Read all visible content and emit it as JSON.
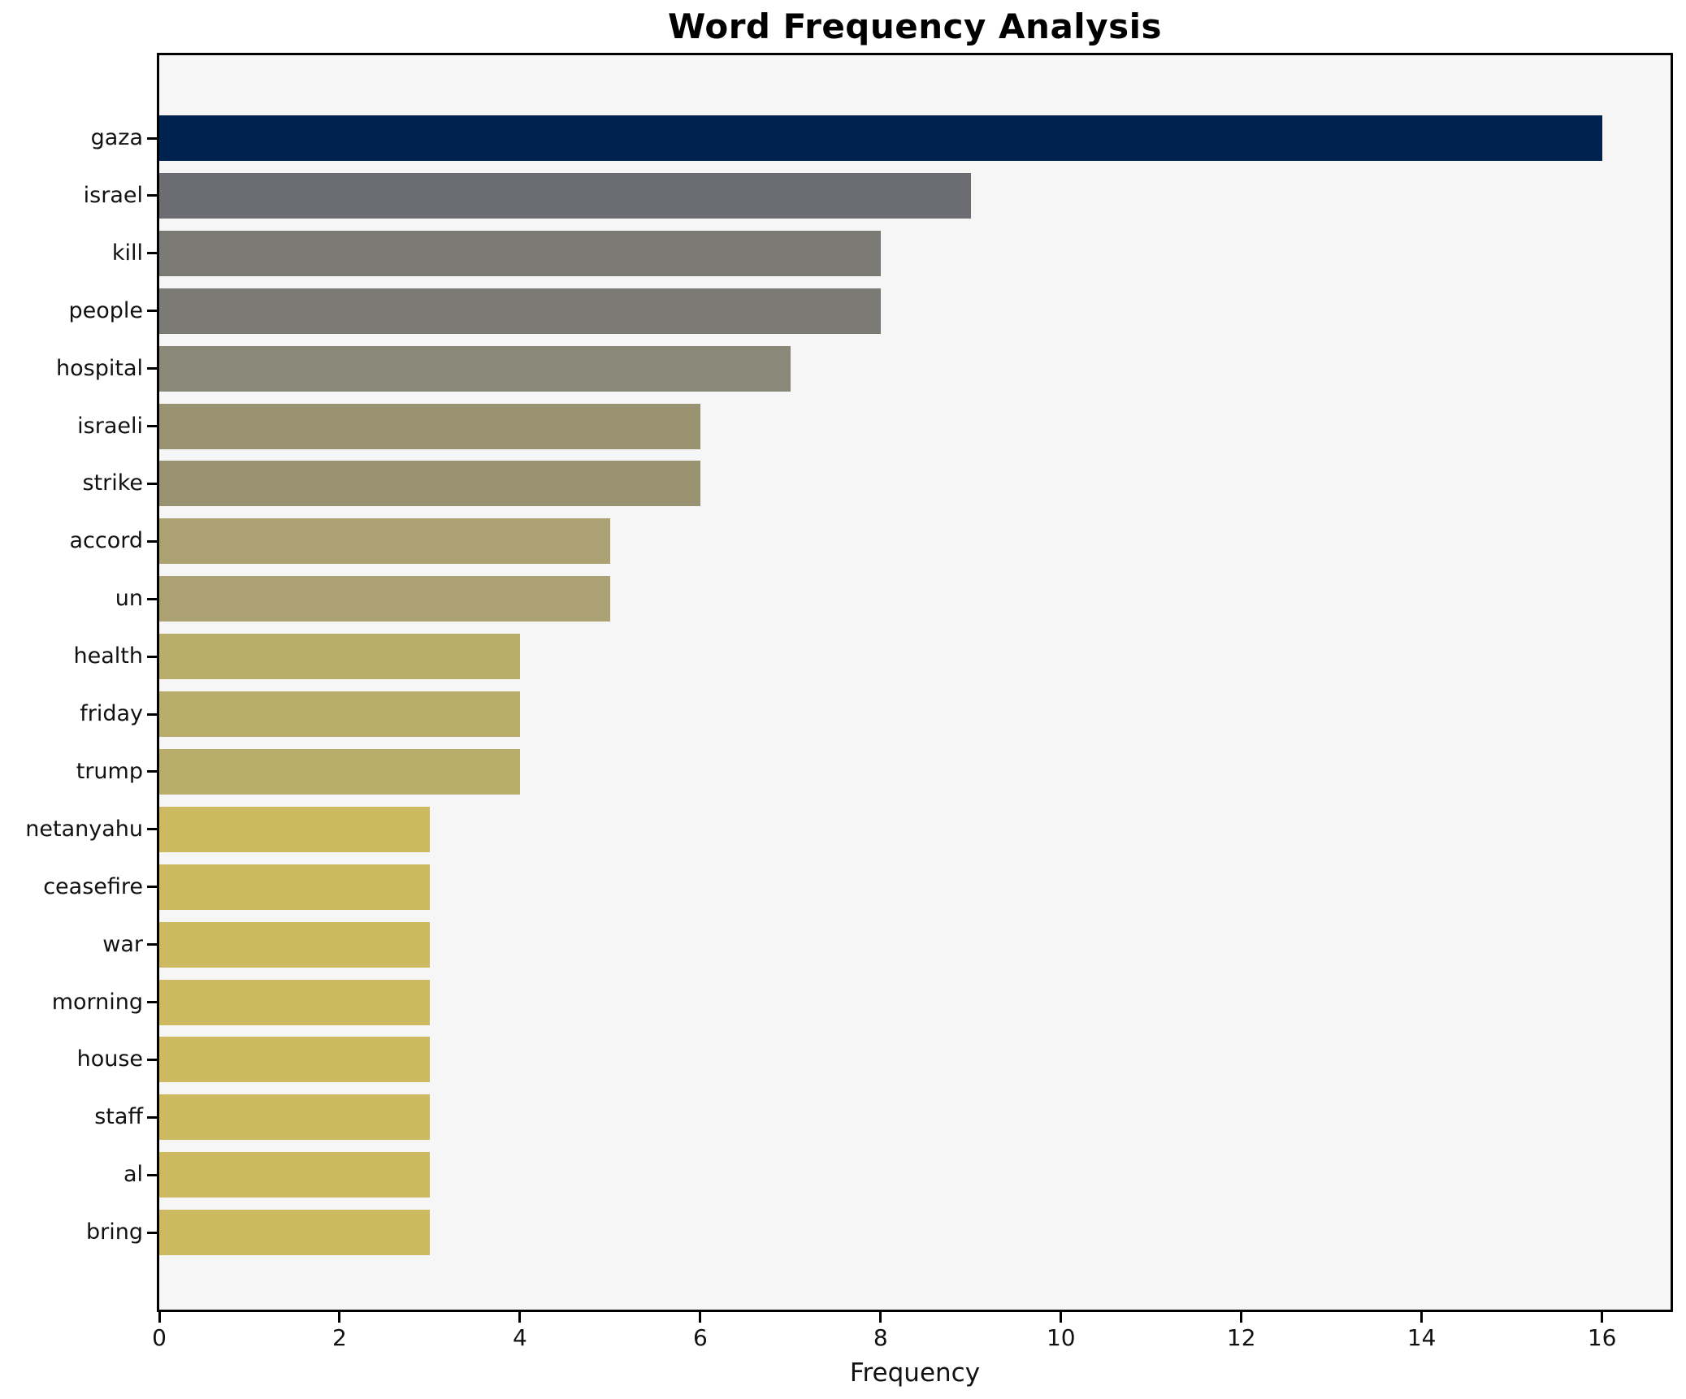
{
  "colors": {
    "figure_bg": "#ffffff",
    "plot_bg": "#f6f6f7",
    "spine": "#000000",
    "text": "#111111"
  },
  "chart_data": {
    "type": "bar",
    "orientation": "horizontal",
    "title": "Word Frequency Analysis",
    "xlabel": "Frequency",
    "ylabel": "",
    "categories": [
      "gaza",
      "israel",
      "kill",
      "people",
      "hospital",
      "israeli",
      "strike",
      "accord",
      "un",
      "health",
      "friday",
      "trump",
      "netanyahu",
      "ceasefire",
      "war",
      "morning",
      "house",
      "staff",
      "al",
      "bring"
    ],
    "values": [
      16,
      9,
      8,
      8,
      7,
      6,
      6,
      5,
      5,
      4,
      4,
      4,
      3,
      3,
      3,
      3,
      3,
      3,
      3,
      3
    ],
    "bar_colors": [
      "#00224e",
      "#6c6d72",
      "#7b7a74",
      "#7b7a74",
      "#8a8879",
      "#9a9372",
      "#9a9372",
      "#aba172",
      "#aba172",
      "#b9ad6c",
      "#b9ad6c",
      "#b9ad6c",
      "#cdba60",
      "#cdba60",
      "#cdba60",
      "#cdba60",
      "#cdba60",
      "#cdba60",
      "#cdba60",
      "#cdba60"
    ],
    "xlim": [
      0,
      16.76
    ],
    "xticks": [
      0,
      2,
      4,
      6,
      8,
      10,
      12,
      14,
      16
    ],
    "grid": false,
    "legend": null
  }
}
